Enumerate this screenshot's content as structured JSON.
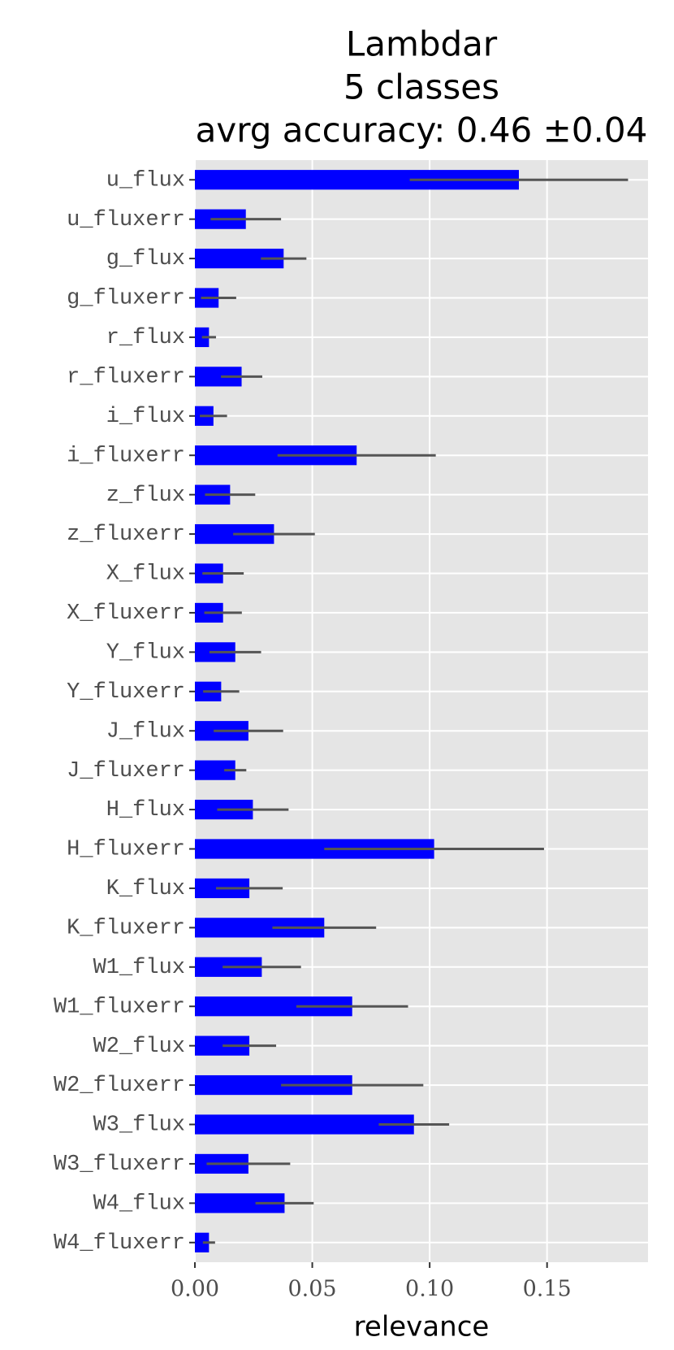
{
  "chart_data": {
    "type": "barh",
    "title": [
      "Lambdar",
      "5 classes",
      "avrg accuracy: 0.46 ±0.04"
    ],
    "xlabel": "relevance",
    "categories": [
      "u_flux",
      "u_fluxerr",
      "g_flux",
      "g_fluxerr",
      "r_flux",
      "r_fluxerr",
      "i_flux",
      "i_fluxerr",
      "z_flux",
      "z_fluxerr",
      "X_flux",
      "X_fluxerr",
      "Y_flux",
      "Y_fluxerr",
      "J_flux",
      "J_fluxerr",
      "H_flux",
      "H_fluxerr",
      "K_flux",
      "K_fluxerr",
      "W1_flux",
      "W1_fluxerr",
      "W2_flux",
      "W2_fluxerr",
      "W3_flux",
      "W3_fluxerr",
      "W4_flux",
      "W4_fluxerr"
    ],
    "values": [
      0.138,
      0.0217,
      0.0378,
      0.0101,
      0.006,
      0.0199,
      0.0079,
      0.0689,
      0.015,
      0.0337,
      0.012,
      0.012,
      0.0172,
      0.0112,
      0.0228,
      0.0172,
      0.0247,
      0.1019,
      0.0232,
      0.0551,
      0.0285,
      0.067,
      0.0232,
      0.067,
      0.0933,
      0.0228,
      0.0382,
      0.006
    ],
    "errors": [
      0.0465,
      0.015,
      0.0097,
      0.0075,
      0.003,
      0.0088,
      0.0058,
      0.0337,
      0.0107,
      0.0174,
      0.0088,
      0.008,
      0.011,
      0.0077,
      0.0148,
      0.0047,
      0.0152,
      0.0468,
      0.0142,
      0.0221,
      0.0167,
      0.0238,
      0.0114,
      0.0303,
      0.015,
      0.0178,
      0.0124,
      0.0026
    ],
    "color": "#0000ff",
    "error_color": "#555555",
    "xlim": [
      0,
      0.193
    ],
    "xticks": [
      {
        "value": 0,
        "label": "0.00"
      },
      {
        "value": 0.05,
        "label": "0.05"
      },
      {
        "value": 0.1,
        "label": "0.10"
      },
      {
        "value": 0.15,
        "label": "0.15"
      }
    ],
    "grid": true
  }
}
